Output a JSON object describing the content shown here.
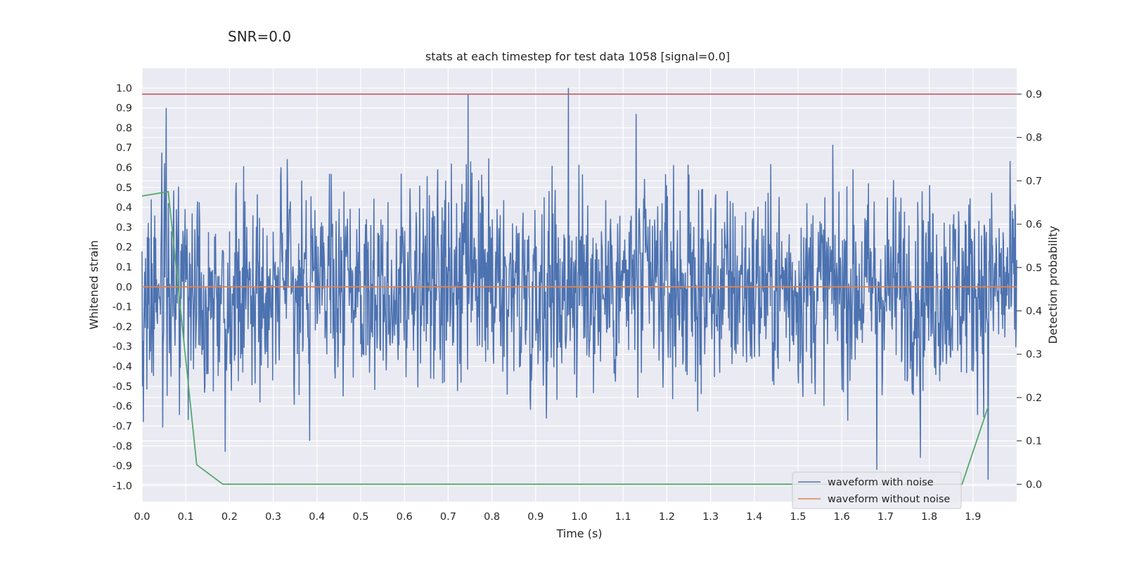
{
  "suptitle": "SNR=0.0",
  "chart_data": {
    "type": "line",
    "title": "stats at each timestep for test data 1058 [signal=0.0]",
    "xlabel": "Time (s)",
    "ylabel": "Whitened strain",
    "y2label": "Detection probability",
    "xlim": [
      0.0,
      2.0
    ],
    "ylim": [
      -1.08,
      1.1
    ],
    "y2lim": [
      -0.04,
      0.96
    ],
    "xticks": [
      "0.0",
      "0.1",
      "0.2",
      "0.3",
      "0.4",
      "0.5",
      "0.6",
      "0.7",
      "0.8",
      "0.9",
      "1.0",
      "1.1",
      "1.2",
      "1.3",
      "1.4",
      "1.5",
      "1.6",
      "1.7",
      "1.8",
      "1.9"
    ],
    "yticks": [
      "1.0",
      "0.9",
      "0.8",
      "0.7",
      "0.6",
      "0.5",
      "0.4",
      "0.3",
      "0.2",
      "0.1",
      "0.0",
      "-0.1",
      "-0.2",
      "-0.3",
      "-0.4",
      "-0.5",
      "-0.6",
      "-0.7",
      "-0.8",
      "-0.9",
      "-1.0"
    ],
    "y2ticks": [
      "0.9",
      "0.8",
      "0.7",
      "0.6",
      "0.5",
      "0.4",
      "0.3",
      "0.2",
      "0.1",
      "0.0"
    ],
    "grid": true,
    "legend_position": "lower-right",
    "series": [
      {
        "name": "waveform with noise",
        "color": "#4c72b0",
        "axis": "left",
        "description_of_values": "dense noise trace, approx ±0.4 typical, peaks near 0.9 at t=0.055, 1.0 at t=0.975, -0.97 at t=1.935",
        "notable_points": [
          [
            0.055,
            0.9
          ],
          [
            0.19,
            -0.83
          ],
          [
            0.745,
            0.97
          ],
          [
            0.975,
            1.0
          ],
          [
            1.13,
            0.87
          ],
          [
            1.68,
            -0.92
          ],
          [
            1.78,
            -0.86
          ],
          [
            1.935,
            -0.97
          ]
        ]
      },
      {
        "name": "waveform without noise",
        "color": "#dd8452",
        "axis": "left",
        "x": [
          0.0,
          2.0
        ],
        "y": [
          0.0,
          0.0
        ]
      },
      {
        "name": "",
        "color": "#55a868",
        "axis": "right",
        "x": [
          0.0,
          0.06,
          0.125,
          0.185,
          1.875,
          1.935
        ],
        "y": [
          0.665,
          0.675,
          0.045,
          0.0,
          0.0,
          0.18
        ]
      },
      {
        "name": "",
        "color": "#c44e52",
        "axis": "right",
        "x": [
          0.0,
          2.0
        ],
        "y": [
          0.9,
          0.9
        ]
      }
    ]
  }
}
